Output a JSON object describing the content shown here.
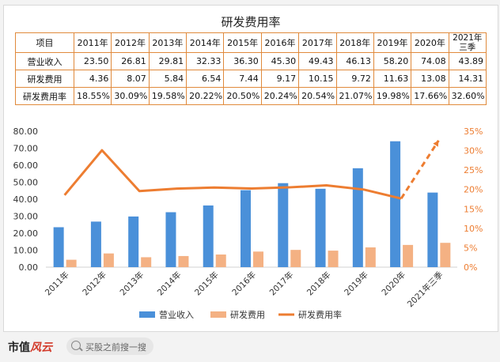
{
  "title": "研发费用率",
  "table": {
    "corner": "项目",
    "headers": [
      "2011年",
      "2012年",
      "2013年",
      "2014年",
      "2015年",
      "2016年",
      "2017年",
      "2018年",
      "2019年",
      "2020年",
      "2021年\n三季"
    ],
    "rows": [
      {
        "label": "营业收入",
        "cells": [
          "23.50",
          "26.81",
          "29.81",
          "32.33",
          "36.30",
          "45.30",
          "49.43",
          "46.13",
          "58.20",
          "74.08",
          "43.89"
        ]
      },
      {
        "label": "研发费用",
        "cells": [
          "4.36",
          "8.07",
          "5.84",
          "6.54",
          "7.44",
          "9.17",
          "10.15",
          "9.72",
          "11.63",
          "13.08",
          "14.31"
        ]
      },
      {
        "label": "研发费用率",
        "cells": [
          "18.55%",
          "30.09%",
          "19.58%",
          "20.22%",
          "20.50%",
          "20.24%",
          "20.54%",
          "21.07%",
          "19.98%",
          "17.66%",
          "32.60%"
        ]
      }
    ]
  },
  "chart_data": {
    "type": "bar",
    "categories": [
      "2011年",
      "2012年",
      "2013年",
      "2014年",
      "2015年",
      "2016年",
      "2017年",
      "2018年",
      "2019年",
      "2020年",
      "2021年三季"
    ],
    "series": [
      {
        "name": "营业收入",
        "type": "bar",
        "axis": "left",
        "color": "#4a90d9",
        "values": [
          23.5,
          26.81,
          29.81,
          32.33,
          36.3,
          45.3,
          49.43,
          46.13,
          58.2,
          74.08,
          43.89
        ]
      },
      {
        "name": "研发费用",
        "type": "bar",
        "axis": "left",
        "color": "#f4b183",
        "values": [
          4.36,
          8.07,
          5.84,
          6.54,
          7.44,
          9.17,
          10.15,
          9.72,
          11.63,
          13.08,
          14.31
        ]
      },
      {
        "name": "研发费用率",
        "type": "line",
        "axis": "right",
        "color": "#ed7d31",
        "values": [
          18.55,
          30.09,
          19.58,
          20.22,
          20.5,
          20.24,
          20.54,
          21.07,
          19.98,
          17.66,
          32.6
        ],
        "dashed_last_segment": true
      }
    ],
    "y_left": {
      "range": [
        0,
        80
      ],
      "ticks": [
        "0.00",
        "10.00",
        "20.00",
        "30.00",
        "40.00",
        "50.00",
        "60.00",
        "70.00",
        "80.00"
      ]
    },
    "y_right": {
      "range": [
        0,
        35
      ],
      "ticks": [
        "0%",
        "5%",
        "10%",
        "15%",
        "20%",
        "25%",
        "30%",
        "35%"
      ],
      "color": "#ed7d31"
    },
    "grid": false,
    "legend_position": "bottom"
  },
  "footer": {
    "brand_text": "市值",
    "brand_seal": "风云",
    "search_placeholder": "买股之前搜一搜"
  }
}
